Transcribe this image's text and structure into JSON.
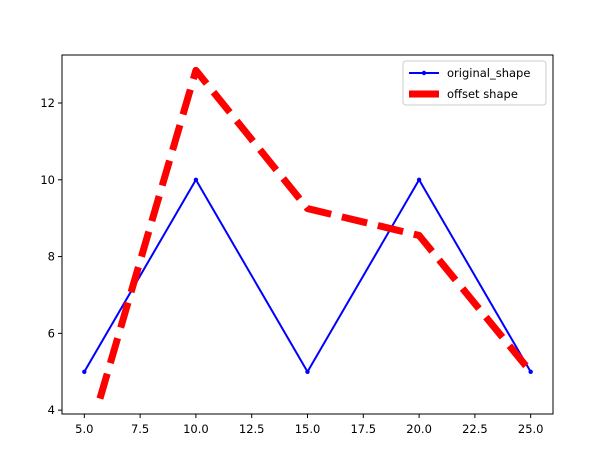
{
  "chart_data": {
    "type": "line",
    "title": "",
    "xlabel": "",
    "ylabel": "",
    "xlim": [
      4.0,
      26.0
    ],
    "ylim": [
      3.9,
      13.25
    ],
    "xticks": [
      5.0,
      7.5,
      10.0,
      12.5,
      15.0,
      17.5,
      20.0,
      22.5,
      25.0
    ],
    "xtick_labels": [
      "5.0",
      "7.5",
      "10.0",
      "12.5",
      "15.0",
      "17.5",
      "20.0",
      "22.5",
      "25.0"
    ],
    "yticks": [
      4,
      6,
      8,
      10,
      12
    ],
    "ytick_labels": [
      "4",
      "6",
      "8",
      "10",
      "12"
    ],
    "grid": false,
    "legend_placement": "top-right",
    "series": [
      {
        "name": "original_shape",
        "color": "#0000ff",
        "style": "solid",
        "marker": "dot",
        "x": [
          5,
          10,
          15,
          20,
          25
        ],
        "y": [
          5,
          10,
          5,
          10,
          5
        ]
      },
      {
        "name": "offset shape",
        "color": "#ff0000",
        "style": "dashed",
        "marker": "none",
        "x": [
          5.7,
          10.0,
          15.0,
          20.0,
          25.0
        ],
        "y": [
          4.3,
          12.85,
          9.25,
          8.55,
          5.0
        ]
      }
    ]
  }
}
